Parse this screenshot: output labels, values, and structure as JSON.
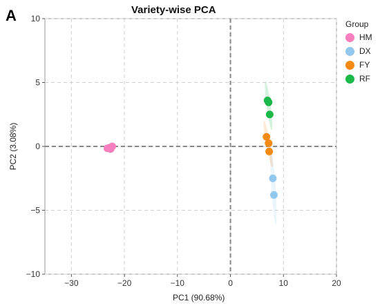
{
  "panel_letter": "A",
  "chart_data": {
    "type": "scatter",
    "title": "Variety-wise PCA",
    "xlabel": "PC1 (90.68%)",
    "ylabel": "PC2 (3.08%)",
    "xlim": [
      -35,
      20
    ],
    "ylim": [
      -10,
      10
    ],
    "xticks": [
      -30,
      -20,
      -10,
      0,
      10,
      20
    ],
    "yticks": [
      -10,
      -5,
      0,
      5,
      10
    ],
    "grid": true,
    "legend_title": "Group",
    "legend_position": "right",
    "series": [
      {
        "name": "HM",
        "color": "#f77fbe",
        "points": [
          [
            -23.2,
            -0.15
          ],
          [
            -22.8,
            -0.1
          ],
          [
            -22.3,
            0.0
          ],
          [
            -22.6,
            -0.2
          ]
        ]
      },
      {
        "name": "DX",
        "color": "#92c8ee",
        "points": [
          [
            8.0,
            -2.5
          ],
          [
            8.2,
            -3.8
          ]
        ]
      },
      {
        "name": "FY",
        "color": "#f58a13",
        "points": [
          [
            6.8,
            0.75
          ],
          [
            7.2,
            0.25
          ],
          [
            7.3,
            -0.4
          ]
        ]
      },
      {
        "name": "RF",
        "color": "#1bb84a",
        "points": [
          [
            7.0,
            3.6
          ],
          [
            7.2,
            3.45
          ],
          [
            7.4,
            2.5
          ]
        ]
      }
    ]
  }
}
